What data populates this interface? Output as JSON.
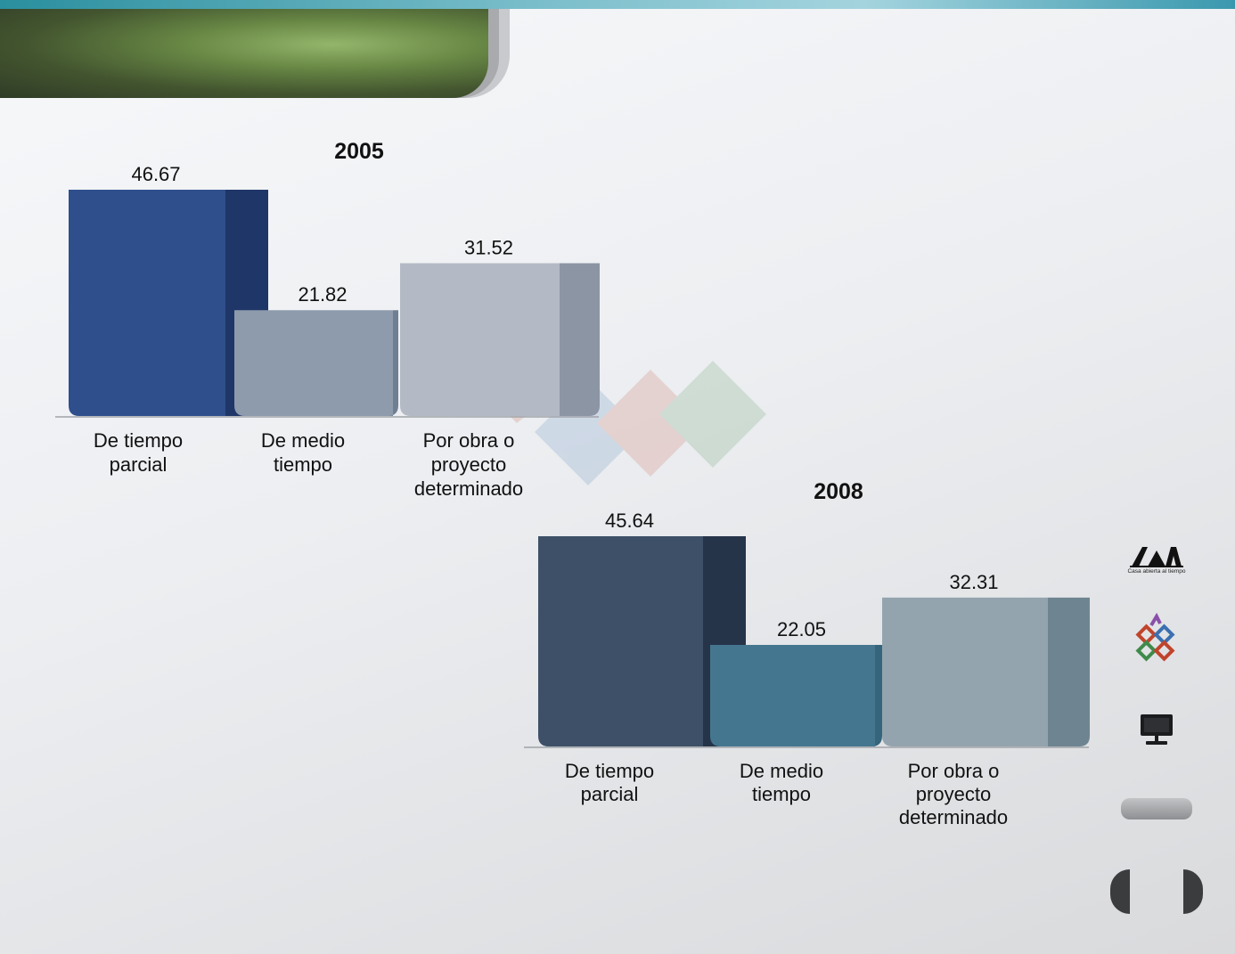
{
  "chart_data": [
    {
      "type": "bar",
      "title": "2005",
      "categories": [
        "De tiempo parcial",
        "De medio tiempo",
        "Por obra o proyecto determinado"
      ],
      "category_lines": [
        [
          "De tiempo",
          "parcial"
        ],
        [
          "De medio",
          "tiempo"
        ],
        [
          "Por obra o",
          "proyecto",
          "determinado"
        ]
      ],
      "values": [
        46.67,
        21.82,
        31.52
      ],
      "value_labels": [
        "46.67",
        "21.82",
        "31.52"
      ],
      "ylim": [
        0,
        46.67
      ],
      "bar_colors": [
        "#2f4e8c",
        "#8d9bad",
        "#b4bac5"
      ],
      "bar_side_colors": [
        "#1f3668",
        "#6f7f93",
        "#8c95a3"
      ],
      "grid": false,
      "legend": "none"
    },
    {
      "type": "bar",
      "title": "2008",
      "categories": [
        "De tiempo parcial",
        "De medio tiempo",
        "Por obra o proyecto determinado"
      ],
      "category_lines": [
        [
          "De tiempo",
          "parcial"
        ],
        [
          "De medio",
          "tiempo"
        ],
        [
          "Por obra o",
          "proyecto",
          "determinado"
        ]
      ],
      "values": [
        45.64,
        22.05,
        32.31
      ],
      "value_labels": [
        "45.64",
        "22.05",
        "32.31"
      ],
      "ylim": [
        0,
        45.64
      ],
      "bar_colors": [
        "#3d5068",
        "#44778f",
        "#94a4ae"
      ],
      "bar_side_colors": [
        "#26344a",
        "#35657d",
        "#6e8591"
      ],
      "grid": false,
      "legend": "none"
    }
  ],
  "sidebar": {
    "logo_tagline": "Casa abierta al tiempo",
    "icons": [
      "uam-logo-icon",
      "colored-squares-logo-icon",
      "monitor-icon",
      "menu-button",
      "prev-arrow-icon",
      "next-arrow-icon"
    ]
  },
  "colors": {
    "top_bar": "#3a98ae",
    "header_band": "#6a8a46"
  }
}
